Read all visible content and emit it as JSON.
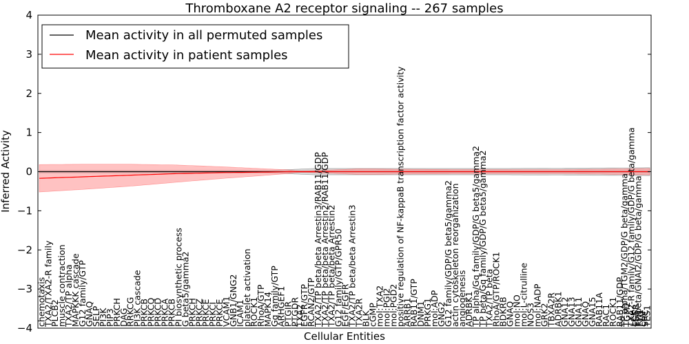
{
  "chart_data": {
    "type": "line",
    "title": "Thromboxane A2 receptor signaling -- 267 samples",
    "xlabel": "Cellular Entities",
    "ylabel": "Inferred Activity",
    "ylim": [
      -4,
      4
    ],
    "yticks": [
      -4,
      -3,
      -2,
      -1,
      0,
      1,
      2,
      3,
      4
    ],
    "xlim": [
      0,
      267
    ],
    "grid": false,
    "legend_position": "top-left",
    "series": [
      {
        "name": "Mean activity in all permuted samples",
        "color": "#000000",
        "band_color": "#bbbbbb",
        "mean_points": [
          [
            0,
            0
          ],
          [
            60,
            0
          ],
          [
            120,
            0
          ],
          [
            140,
            0
          ],
          [
            180,
            0
          ],
          [
            230,
            0
          ],
          [
            267,
            0
          ]
        ],
        "band_points": [
          [
            0,
            0.03
          ],
          [
            100,
            0.03
          ],
          [
            120,
            0.08
          ],
          [
            140,
            0.08
          ],
          [
            200,
            0.08
          ],
          [
            267,
            0.1
          ]
        ]
      },
      {
        "name": "Mean activity in patient samples",
        "color": "#ff0000",
        "band_color": "#ff9999",
        "mean_points": [
          [
            0,
            -0.17
          ],
          [
            20,
            -0.13
          ],
          [
            40,
            -0.09
          ],
          [
            60,
            -0.05
          ],
          [
            80,
            -0.025
          ],
          [
            100,
            -0.01
          ],
          [
            110,
            0
          ],
          [
            120,
            0
          ],
          [
            267,
            0
          ]
        ],
        "band_points": [
          [
            0,
            0.35
          ],
          [
            20,
            0.32
          ],
          [
            40,
            0.28
          ],
          [
            60,
            0.22
          ],
          [
            80,
            0.15
          ],
          [
            100,
            0.08
          ],
          [
            108,
            0.05
          ],
          [
            113,
            0.02
          ],
          [
            118,
            0.02
          ],
          [
            140,
            0.07
          ],
          [
            160,
            0.06
          ],
          [
            190,
            0.05
          ],
          [
            230,
            0.05
          ],
          [
            267,
            0.08
          ]
        ]
      }
    ],
    "entity_labels": [
      {
        "pos": 1,
        "text": "chemotaxis"
      },
      {
        "pos": 4,
        "text": "TXA2/TXA2-R family"
      },
      {
        "pos": 7,
        "text": "PLCB2"
      },
      {
        "pos": 10,
        "text": "muscle contraction"
      },
      {
        "pos": 13,
        "text": "TXA2/TP alpha"
      },
      {
        "pos": 16,
        "text": "MAPKKK cascade"
      },
      {
        "pos": 19,
        "text": "G12 family/GTP"
      },
      {
        "pos": 22,
        "text": "GNAQ"
      },
      {
        "pos": 25,
        "text": "SELP"
      },
      {
        "pos": 28,
        "text": "PI3K"
      },
      {
        "pos": 31,
        "text": "PIP3"
      },
      {
        "pos": 34,
        "text": "PRKCH"
      },
      {
        "pos": 37,
        "text": "DAG"
      },
      {
        "pos": 40,
        "text": "RRKCG"
      },
      {
        "pos": 43,
        "text": "PI3K cascade"
      },
      {
        "pos": 46,
        "text": "PRKCB"
      },
      {
        "pos": 49,
        "text": "PRKCQ"
      },
      {
        "pos": 52,
        "text": "PRKCD"
      },
      {
        "pos": 55,
        "text": "PRKCA"
      },
      {
        "pos": 58,
        "text": "PRKCB"
      },
      {
        "pos": 61,
        "text": "PI biosynthetic process"
      },
      {
        "pos": 64,
        "text": "G beta5/gamma2"
      },
      {
        "pos": 67,
        "text": "PRKCH"
      },
      {
        "pos": 70,
        "text": "PRKCZ"
      },
      {
        "pos": 73,
        "text": "PRKCE"
      },
      {
        "pos": 76,
        "text": "PRKCI"
      },
      {
        "pos": 79,
        "text": "PRKCE"
      },
      {
        "pos": 82,
        "text": "VCAM1"
      },
      {
        "pos": 85,
        "text": "GNB1/GNG2"
      },
      {
        "pos": 88,
        "text": "ICAM1"
      },
      {
        "pos": 91,
        "text": "platelet activation"
      },
      {
        "pos": 94,
        "text": "ROCK1"
      },
      {
        "pos": 97,
        "text": "RhoA/GTP"
      },
      {
        "pos": 100,
        "text": "MAPK14"
      },
      {
        "pos": 103,
        "text": "Gq family/GTP"
      },
      {
        "pos": 106,
        "text": "ARHGEF1"
      },
      {
        "pos": 109,
        "text": "PTGIR"
      },
      {
        "pos": 112,
        "text": "PTGDR"
      },
      {
        "pos": 114,
        "text": "TXA2"
      },
      {
        "pos": 116,
        "text": "EGFR/GTP"
      },
      {
        "pos": 119,
        "text": "RCAN2/GTP"
      },
      {
        "pos": 122,
        "text": "TXA2/TP beta/beta Arrestin3/RAB11/GDP"
      },
      {
        "pos": 125,
        "text": "TXA2/TP beta/beta Arrestin2/RAB11/GDP"
      },
      {
        "pos": 128,
        "text": "TXA2/TP beta/beta Arrestin2"
      },
      {
        "pos": 131,
        "text": "G12 family/GTP/GPR50"
      },
      {
        "pos": 134,
        "text": "EGF/EGFR"
      },
      {
        "pos": 137,
        "text": "TXA2/TP beta/beta Arrestin3"
      },
      {
        "pos": 140,
        "text": "TXA2R"
      },
      {
        "pos": 143,
        "text": "BLK"
      },
      {
        "pos": 146,
        "text": "cGMP"
      },
      {
        "pos": 149,
        "text": "mol:TXA2"
      },
      {
        "pos": 152,
        "text": "mol:PGI2"
      },
      {
        "pos": 155,
        "text": "mol:PGD2"
      },
      {
        "pos": 158,
        "text": "positive regulation of NF-kappaB transcription factor activity"
      },
      {
        "pos": 161,
        "text": "ARRB1"
      },
      {
        "pos": 164,
        "text": "RAB11/GTP"
      },
      {
        "pos": 167,
        "text": "DNM1"
      },
      {
        "pos": 170,
        "text": "PRKG1"
      },
      {
        "pos": 173,
        "text": "mol:ADP"
      },
      {
        "pos": 176,
        "text": "GNG2"
      },
      {
        "pos": 179,
        "text": "G12 family/GDP/G beta5/gamma2"
      },
      {
        "pos": 182,
        "text": "actin cytoskeleton reorganization"
      },
      {
        "pos": 185,
        "text": "angiogenesis"
      },
      {
        "pos": 188,
        "text": "ADRBK1"
      },
      {
        "pos": 191,
        "text": "TP alpha/Gq family/GDP/G beta5/gamma2"
      },
      {
        "pos": 194,
        "text": "TP beta/Gq family/GDP/G beta5/gamma2"
      },
      {
        "pos": 197,
        "text": "TXA2/TP beta"
      },
      {
        "pos": 200,
        "text": "RhoA/GTP/ROCK1"
      },
      {
        "pos": 203,
        "text": "BDKRB"
      },
      {
        "pos": 206,
        "text": "GNAQ"
      },
      {
        "pos": 209,
        "text": "mol:NO"
      },
      {
        "pos": 212,
        "text": "mol:L-citrulline"
      },
      {
        "pos": 215,
        "text": "NOS3"
      },
      {
        "pos": 218,
        "text": "mol:NADP"
      },
      {
        "pos": 221,
        "text": "GRK2"
      },
      {
        "pos": 224,
        "text": "TBXA2R"
      },
      {
        "pos": 227,
        "text": "ADRBK1"
      },
      {
        "pos": 230,
        "text": "GNA12"
      },
      {
        "pos": 233,
        "text": "GNA13"
      },
      {
        "pos": 236,
        "text": "GNA11"
      },
      {
        "pos": 239,
        "text": "GNAQ"
      },
      {
        "pos": 242,
        "text": "GNA15"
      },
      {
        "pos": 245,
        "text": "RAB11A"
      },
      {
        "pos": 248,
        "text": "RAC1"
      },
      {
        "pos": 251,
        "text": "ROCK1"
      },
      {
        "pos": 254,
        "text": "RAB11/GDP"
      },
      {
        "pos": 256,
        "text": "TP alpha/TGM2/GDP/G beta/gamma"
      },
      {
        "pos": 257,
        "text": "TGM2"
      },
      {
        "pos": 259,
        "text": "TXA2-R family/G12 family/GDP/G beta/gamma"
      },
      {
        "pos": 260,
        "text": "LCK"
      },
      {
        "pos": 261,
        "text": "EGFR"
      },
      {
        "pos": 262,
        "text": "TP beta/GNAI2/GDP/G beta/gamma"
      },
      {
        "pos": 263,
        "text": "FYN"
      },
      {
        "pos": 264,
        "text": "LYN"
      },
      {
        "pos": 265,
        "text": "SRC"
      },
      {
        "pos": 266,
        "text": "YES1"
      }
    ]
  }
}
